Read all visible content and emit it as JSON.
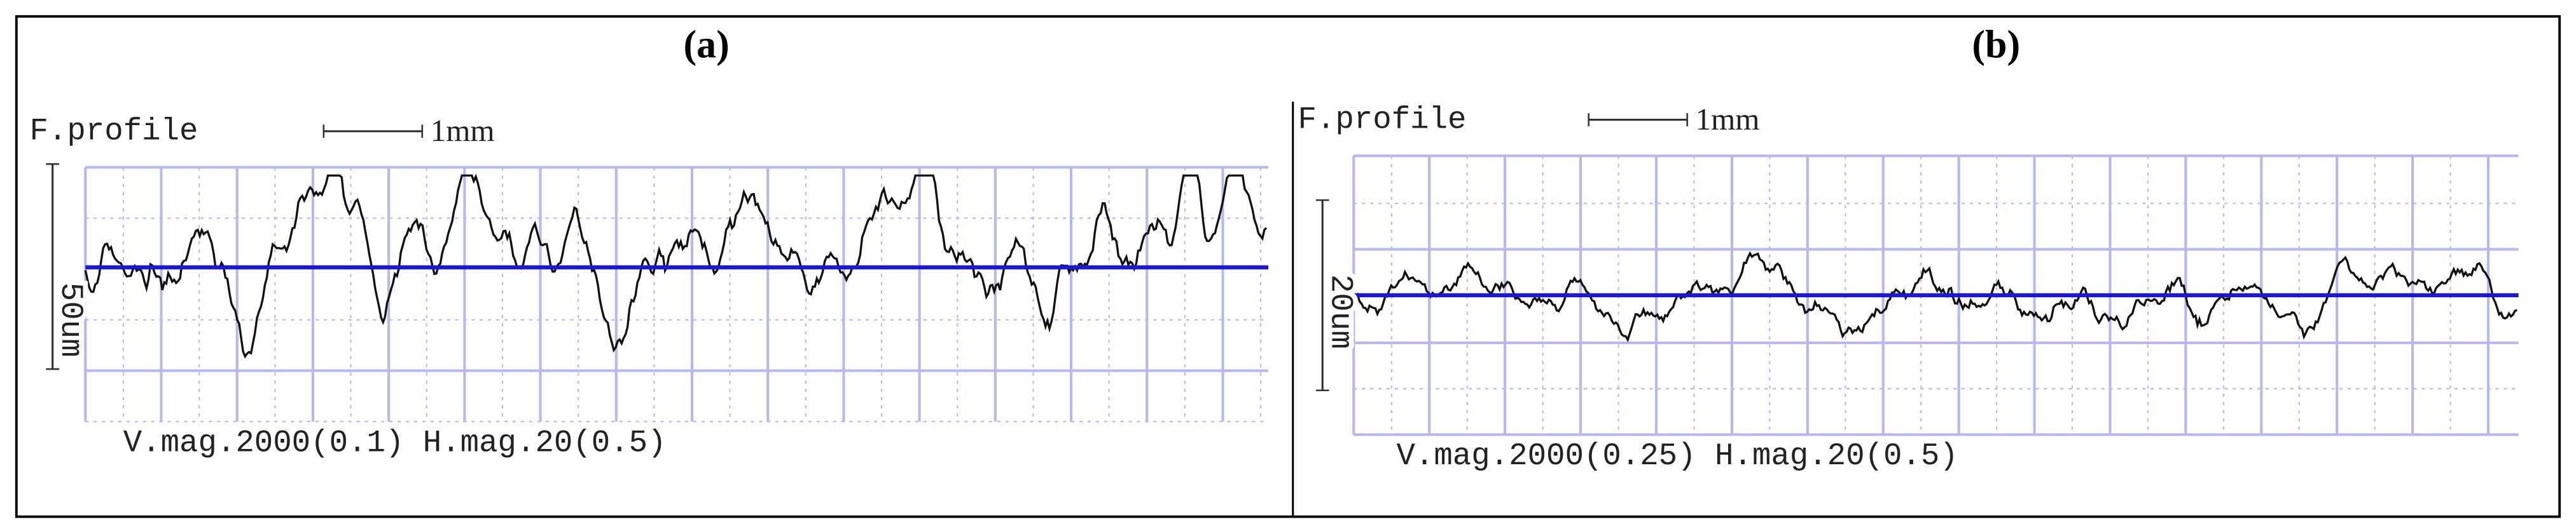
{
  "panels": [
    {
      "label": "(a)",
      "profile_title": "F.profile",
      "scale_bar": "1mm",
      "vertical_scale": "50um",
      "magnification": "V.mag.2000(0.1) H.mag.20(0.5)"
    },
    {
      "label": "(b)",
      "profile_title": "F.profile",
      "scale_bar": "1mm",
      "vertical_scale": "20um",
      "magnification": "V.mag.2000(0.25) H.mag.20(0.5)"
    }
  ]
}
